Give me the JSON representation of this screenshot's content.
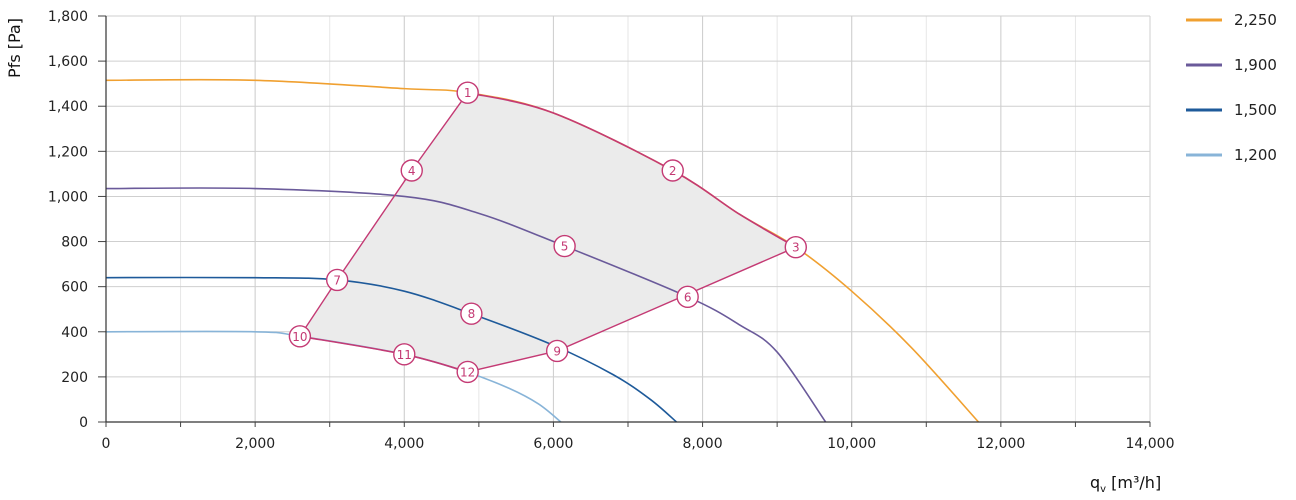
{
  "chart_data": {
    "type": "line",
    "xlabel_main": "q",
    "xlabel_sub": "v",
    "xlabel_unit": " [m³/h]",
    "ylabel": "Pfs [Pa]",
    "xlim": [
      0,
      14000
    ],
    "ylim": [
      0,
      1800
    ],
    "x_ticks": [
      0,
      2000,
      4000,
      6000,
      8000,
      10000,
      12000,
      14000
    ],
    "x_tick_labels": [
      "0",
      "2,000",
      "4,000",
      "6,000",
      "8,000",
      "10,000",
      "12,000",
      "14,000"
    ],
    "y_ticks": [
      0,
      200,
      400,
      600,
      800,
      1000,
      1200,
      1400,
      1600,
      1800
    ],
    "y_tick_labels": [
      "0",
      "200",
      "400",
      "600",
      "800",
      "1,000",
      "1,200",
      "1,400",
      "1,600",
      "1,800"
    ],
    "grid": true,
    "legend_position": "right",
    "series": [
      {
        "name": "2,250",
        "color": "#f0a030",
        "points": [
          [
            0,
            1515
          ],
          [
            2000,
            1515
          ],
          [
            4000,
            1478
          ],
          [
            4850,
            1460
          ],
          [
            6000,
            1370
          ],
          [
            7600,
            1115
          ],
          [
            8500,
            920
          ],
          [
            9250,
            775
          ],
          [
            10000,
            580
          ],
          [
            10800,
            330
          ],
          [
            11700,
            0
          ]
        ]
      },
      {
        "name": "1,900",
        "color": "#6a5a9a",
        "points": [
          [
            0,
            1035
          ],
          [
            2000,
            1035
          ],
          [
            4000,
            1000
          ],
          [
            5000,
            925
          ],
          [
            6150,
            780
          ],
          [
            7800,
            555
          ],
          [
            8500,
            430
          ],
          [
            9000,
            310
          ],
          [
            9650,
            0
          ]
        ]
      },
      {
        "name": "1,500",
        "color": "#1e5a9a",
        "points": [
          [
            0,
            640
          ],
          [
            2000,
            640
          ],
          [
            3100,
            630
          ],
          [
            4000,
            580
          ],
          [
            4900,
            480
          ],
          [
            6000,
            340
          ],
          [
            6800,
            210
          ],
          [
            7300,
            100
          ],
          [
            7650,
            0
          ]
        ]
      },
      {
        "name": "1,200",
        "color": "#88b4d8",
        "points": [
          [
            0,
            400
          ],
          [
            2000,
            400
          ],
          [
            2600,
            380
          ],
          [
            4000,
            300
          ],
          [
            4850,
            220
          ],
          [
            5400,
            150
          ],
          [
            5800,
            80
          ],
          [
            6100,
            0
          ]
        ]
      }
    ],
    "operating_points": [
      {
        "label": "1",
        "x": 4850,
        "y": 1460
      },
      {
        "label": "2",
        "x": 7600,
        "y": 1115
      },
      {
        "label": "3",
        "x": 9250,
        "y": 775
      },
      {
        "label": "4",
        "x": 4100,
        "y": 1115
      },
      {
        "label": "5",
        "x": 6150,
        "y": 780
      },
      {
        "label": "6",
        "x": 7800,
        "y": 555
      },
      {
        "label": "7",
        "x": 3100,
        "y": 630
      },
      {
        "label": "8",
        "x": 4900,
        "y": 480
      },
      {
        "label": "9",
        "x": 6050,
        "y": 315
      },
      {
        "label": "10",
        "x": 2600,
        "y": 380
      },
      {
        "label": "11",
        "x": 4000,
        "y": 300
      },
      {
        "label": "12",
        "x": 4850,
        "y": 222
      }
    ],
    "envelope_color": "#c43a74",
    "envelope_fill": "#ebebeb",
    "envelope_top": [
      [
        4850,
        1460
      ],
      [
        6000,
        1370
      ],
      [
        7600,
        1115
      ],
      [
        8500,
        920
      ],
      [
        9250,
        775
      ]
    ],
    "envelope_right": [
      [
        9250,
        775
      ],
      [
        6050,
        315
      ],
      [
        4850,
        222
      ]
    ],
    "envelope_bottom": [
      [
        4850,
        222
      ],
      [
        4000,
        300
      ],
      [
        2600,
        380
      ]
    ],
    "envelope_left": [
      [
        2600,
        380
      ],
      [
        3100,
        630
      ],
      [
        4100,
        1115
      ],
      [
        4850,
        1460
      ]
    ]
  }
}
